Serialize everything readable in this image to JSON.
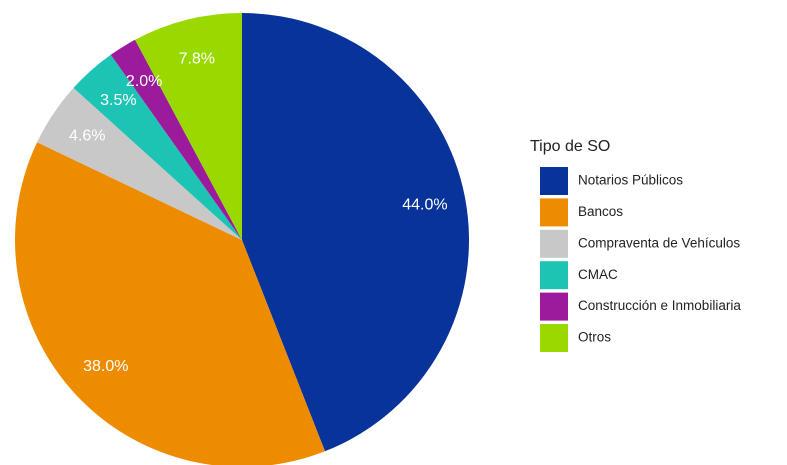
{
  "chart_data": {
    "type": "pie",
    "legend_title": "Tipo de SO",
    "categories": [
      "Notarios Públicos",
      "Bancos",
      "Compraventa de Vehículos",
      "CMAC",
      "Construcción e Inmobiliaria",
      "Otros"
    ],
    "values": [
      44.0,
      38.0,
      4.6,
      3.5,
      2.0,
      7.8
    ],
    "value_labels": [
      "44.0%",
      "38.0%",
      "4.6%",
      "3.5%",
      "2.0%",
      "7.8%"
    ],
    "colors": [
      "#08339b",
      "#ee8c00",
      "#c8c8c8",
      "#1dc4b4",
      "#9c1b9c",
      "#9ad900"
    ],
    "legend": "right"
  }
}
